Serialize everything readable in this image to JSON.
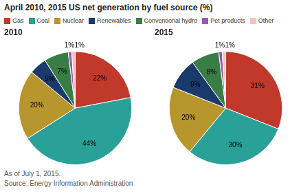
{
  "chart_data": [
    {
      "type": "pie",
      "title": "April 2010, 2015 US net generation by fuel source (%)",
      "subtitle": "2010",
      "categories": [
        "Gas",
        "Coal",
        "Nuclear",
        "Renewables",
        "Conventional hydro",
        "Pet products",
        "Other"
      ],
      "values": [
        22,
        44,
        20,
        5,
        7,
        1,
        1
      ],
      "value_labels": [
        "22%",
        "44%",
        "20%",
        "5%",
        "7%",
        "1%",
        "1%"
      ],
      "colors": [
        "#c0392b",
        "#2aa198",
        "#b8962e",
        "#1a3a6b",
        "#3a7d44",
        "#9b59b6",
        "#f4c2c2"
      ],
      "data_labels": true,
      "legend": "top",
      "annotations": [
        "As of July 1, 2015.",
        "Source: Energy Information Administration"
      ]
    },
    {
      "type": "pie",
      "subtitle": "2015",
      "categories": [
        "Gas",
        "Coal",
        "Nuclear",
        "Renewables",
        "Conventional hydro",
        "Pet products",
        "Other"
      ],
      "values": [
        31,
        30,
        20,
        9,
        8,
        1,
        1
      ],
      "value_labels": [
        "31%",
        "30%",
        "20%",
        "9%",
        "8%",
        "1%",
        "1%"
      ],
      "colors": [
        "#c0392b",
        "#2aa198",
        "#b8962e",
        "#1a3a6b",
        "#3a7d44",
        "#9b59b6",
        "#f4c2c2"
      ],
      "data_labels": true
    }
  ]
}
